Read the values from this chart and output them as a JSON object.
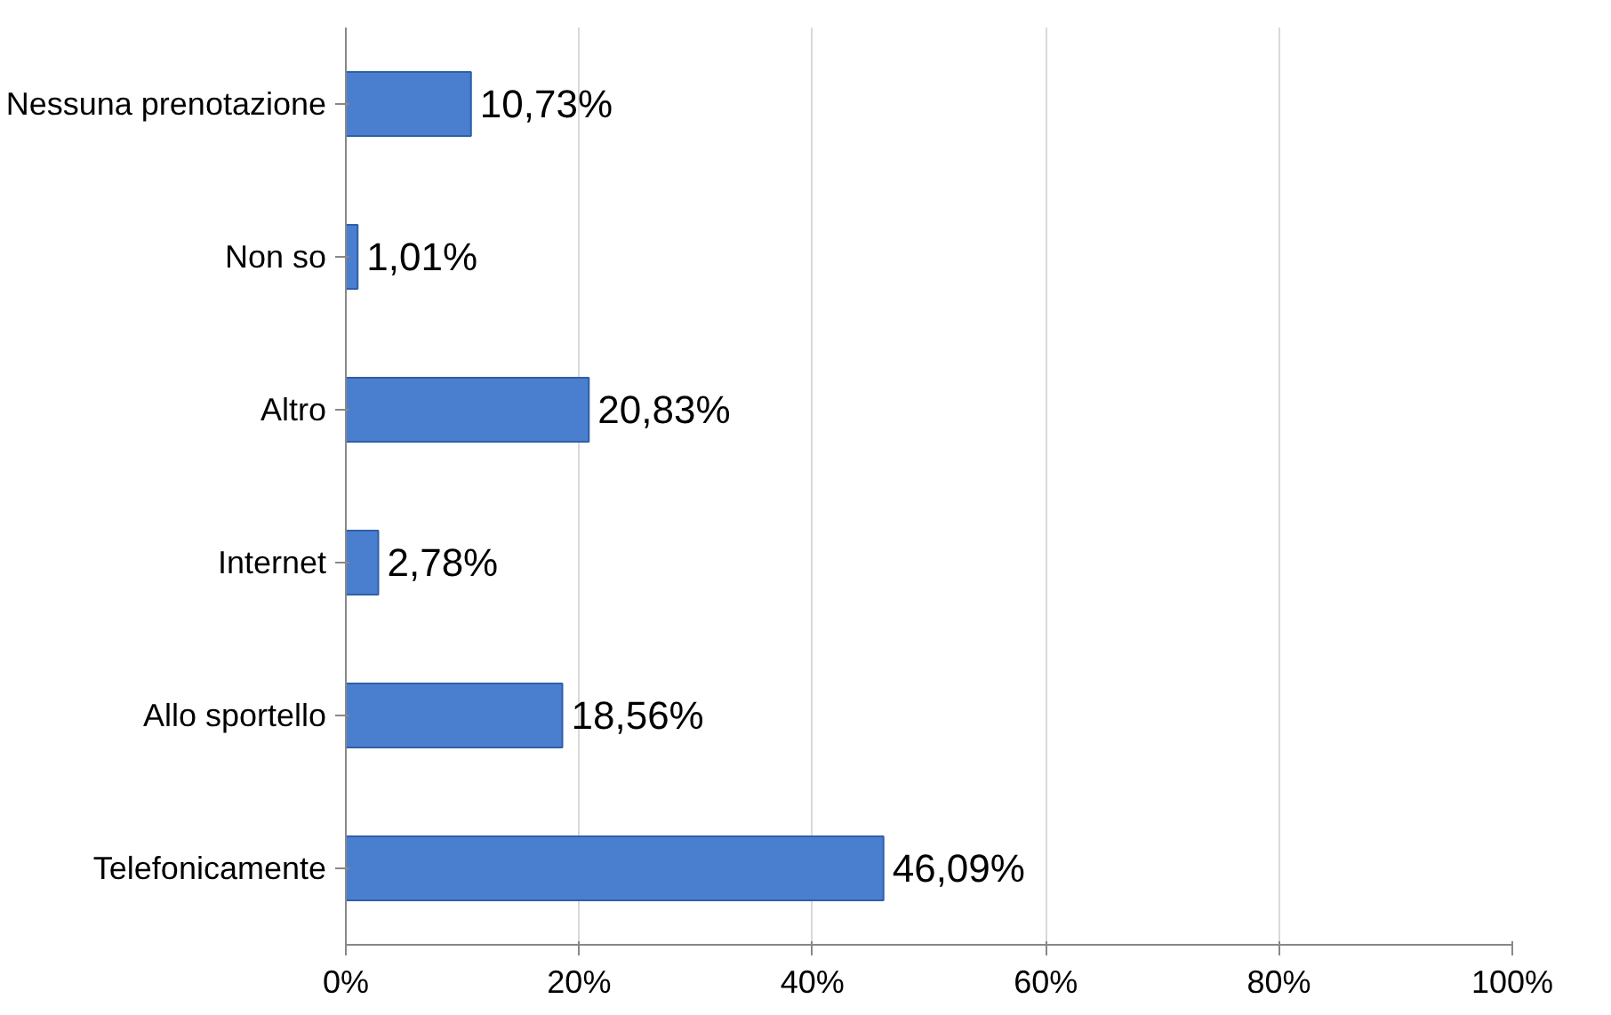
{
  "chart_data": {
    "type": "bar",
    "orientation": "horizontal",
    "categories": [
      "Nessuna prenotazione",
      "Non so",
      "Altro",
      "Internet",
      "Allo sportello",
      "Telefonicamente"
    ],
    "values": [
      10.73,
      1.01,
      20.83,
      2.78,
      18.56,
      46.09
    ],
    "value_labels": [
      "10,73%",
      "1,01%",
      "20,83%",
      "2,78%",
      "18,56%",
      "46,09%"
    ],
    "color": "#4a7fd0",
    "xlim": [
      0,
      100
    ],
    "xticks": [
      {
        "value": 0,
        "label": "0%"
      },
      {
        "value": 20,
        "label": "20%"
      },
      {
        "value": 40,
        "label": "40%"
      },
      {
        "value": 60,
        "label": "60%"
      },
      {
        "value": 80,
        "label": "80%"
      },
      {
        "value": 100,
        "label": "100%"
      }
    ],
    "grid": "x"
  }
}
